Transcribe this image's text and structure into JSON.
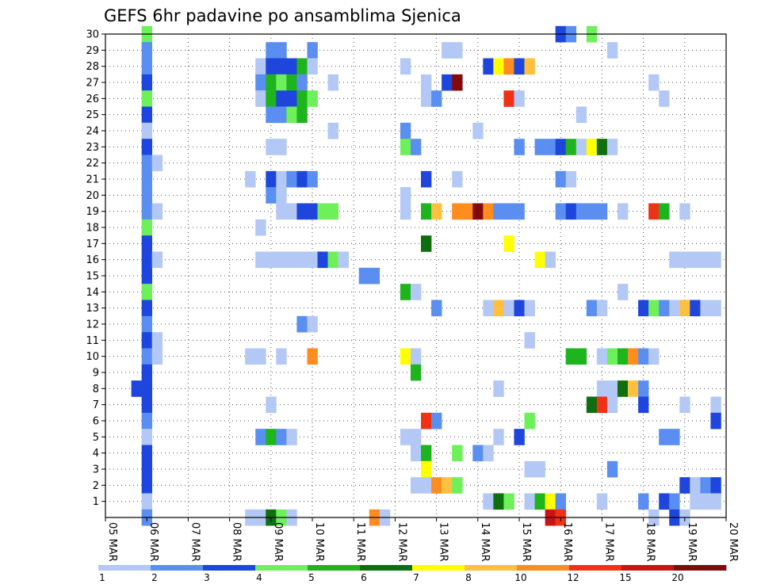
{
  "chart_data": {
    "type": "heatmap",
    "title": "GEFS 6hr padavine po ansamblima Sjenica",
    "xlabel": "",
    "ylabel": "",
    "x_ticks": [
      "05 MAR",
      "06 MAR",
      "07 MAR",
      "08 MAR",
      "09 MAR",
      "10 MAR",
      "11 MAR",
      "12 MAR",
      "13 MAR",
      "14 MAR",
      "15 MAR",
      "16 MAR",
      "17 MAR",
      "18 MAR",
      "19 MAR",
      "20 MAR"
    ],
    "y_ticks": [
      1,
      2,
      3,
      4,
      5,
      6,
      7,
      8,
      9,
      10,
      11,
      12,
      13,
      14,
      15,
      16,
      17,
      18,
      19,
      20,
      21,
      22,
      23,
      24,
      25,
      26,
      27,
      28,
      29,
      30
    ],
    "x_range_days": [
      0,
      15
    ],
    "y_range": [
      0,
      30
    ],
    "grid": "dotted",
    "legend": "bottom colorbar",
    "levels": [
      1,
      2,
      3,
      4,
      5,
      6,
      7,
      8,
      10,
      12,
      15,
      20
    ],
    "colors": [
      "#b4c8f5",
      "#5a8ef0",
      "#1e46dc",
      "#6ef05a",
      "#1eb41e",
      "#0f6e0f",
      "#ffff00",
      "#ffc040",
      "#ff8c1e",
      "#f03214",
      "#c81414",
      "#820a0a"
    ],
    "cells_format": "[day_offset_from_05_MAR, member, color_class]",
    "cells": [
      [
        1,
        30,
        3
      ],
      [
        1,
        29,
        1
      ],
      [
        1,
        28,
        1
      ],
      [
        1,
        27,
        2
      ],
      [
        1,
        26,
        3
      ],
      [
        1,
        25,
        2
      ],
      [
        1,
        24,
        0
      ],
      [
        1,
        23,
        2
      ],
      [
        1,
        22,
        1
      ],
      [
        1,
        21,
        1
      ],
      [
        1,
        20,
        1
      ],
      [
        1,
        19,
        1
      ],
      [
        1,
        18,
        3
      ],
      [
        1,
        17,
        2
      ],
      [
        1,
        16,
        2
      ],
      [
        1,
        15,
        2
      ],
      [
        1,
        14,
        3
      ],
      [
        1,
        13,
        2
      ],
      [
        1,
        12,
        1
      ],
      [
        1,
        11,
        2
      ],
      [
        1,
        10,
        1
      ],
      [
        1,
        9,
        2
      ],
      [
        1,
        8,
        2
      ],
      [
        1,
        7,
        2
      ],
      [
        1,
        6,
        1
      ],
      [
        1,
        5,
        0
      ],
      [
        1,
        4,
        2
      ],
      [
        1,
        3,
        2
      ],
      [
        1,
        2,
        2
      ],
      [
        1,
        1,
        0
      ],
      [
        1,
        0,
        1
      ],
      [
        1.25,
        22,
        0
      ],
      [
        1.25,
        19,
        0
      ],
      [
        1.25,
        16,
        0
      ],
      [
        1.25,
        11,
        0
      ],
      [
        1.25,
        10,
        0
      ],
      [
        0.75,
        8,
        2
      ],
      [
        3.5,
        21,
        0
      ],
      [
        3.5,
        10,
        0
      ],
      [
        3.5,
        0,
        0
      ],
      [
        3.75,
        28,
        0
      ],
      [
        3.75,
        27,
        1
      ],
      [
        3.75,
        26,
        0
      ],
      [
        3.75,
        18,
        0
      ],
      [
        3.75,
        16,
        0
      ],
      [
        3.75,
        10,
        0
      ],
      [
        3.75,
        5,
        1
      ],
      [
        3.75,
        0,
        0
      ],
      [
        4,
        29,
        1
      ],
      [
        4,
        28,
        2
      ],
      [
        4,
        27,
        4
      ],
      [
        4,
        26,
        4
      ],
      [
        4,
        25,
        1
      ],
      [
        4,
        23,
        0
      ],
      [
        4,
        21,
        2
      ],
      [
        4,
        20,
        1
      ],
      [
        4,
        16,
        0
      ],
      [
        4,
        7,
        0
      ],
      [
        4,
        5,
        4
      ],
      [
        4,
        0,
        5
      ],
      [
        4.25,
        29,
        1
      ],
      [
        4.25,
        28,
        2
      ],
      [
        4.25,
        27,
        3
      ],
      [
        4.25,
        26,
        2
      ],
      [
        4.25,
        25,
        1
      ],
      [
        4.25,
        23,
        0
      ],
      [
        4.25,
        21,
        0
      ],
      [
        4.25,
        20,
        0
      ],
      [
        4.25,
        19,
        0
      ],
      [
        4.25,
        16,
        0
      ],
      [
        4.25,
        10,
        0
      ],
      [
        4.25,
        5,
        1
      ],
      [
        4.25,
        0,
        3
      ],
      [
        4.5,
        28,
        2
      ],
      [
        4.5,
        27,
        4
      ],
      [
        4.5,
        26,
        2
      ],
      [
        4.5,
        25,
        3
      ],
      [
        4.5,
        21,
        1
      ],
      [
        4.5,
        19,
        0
      ],
      [
        4.5,
        16,
        0
      ],
      [
        4.5,
        5,
        0
      ],
      [
        4.5,
        0,
        0
      ],
      [
        4.75,
        28,
        4
      ],
      [
        4.75,
        27,
        1
      ],
      [
        4.75,
        26,
        4
      ],
      [
        4.75,
        25,
        4
      ],
      [
        4.75,
        21,
        2
      ],
      [
        4.75,
        19,
        2
      ],
      [
        4.75,
        16,
        0
      ],
      [
        4.75,
        12,
        1
      ],
      [
        5,
        29,
        1
      ],
      [
        5,
        28,
        0
      ],
      [
        5,
        26,
        3
      ],
      [
        5,
        21,
        1
      ],
      [
        5,
        19,
        2
      ],
      [
        5,
        16,
        0
      ],
      [
        5,
        12,
        0
      ],
      [
        5,
        10,
        8
      ],
      [
        5.25,
        19,
        3
      ],
      [
        5.25,
        16,
        2
      ],
      [
        5.5,
        27,
        0
      ],
      [
        5.5,
        24,
        0
      ],
      [
        5.5,
        19,
        3
      ],
      [
        5.5,
        16,
        3
      ],
      [
        5.75,
        16,
        0
      ],
      [
        6.25,
        15,
        1
      ],
      [
        6.5,
        15,
        1
      ],
      [
        6.5,
        0,
        8
      ],
      [
        6.75,
        0,
        0
      ],
      [
        7.25,
        28,
        0
      ],
      [
        7.25,
        24,
        1
      ],
      [
        7.25,
        23,
        3
      ],
      [
        7.25,
        20,
        0
      ],
      [
        7.25,
        19,
        0
      ],
      [
        7.25,
        14,
        4
      ],
      [
        7.25,
        10,
        6
      ],
      [
        7.25,
        5,
        0
      ],
      [
        7.5,
        23,
        1
      ],
      [
        7.5,
        14,
        0
      ],
      [
        7.5,
        10,
        0
      ],
      [
        7.5,
        5,
        0
      ],
      [
        7.5,
        4,
        0
      ],
      [
        7.5,
        2,
        0
      ],
      [
        7.5,
        9,
        4
      ],
      [
        7.75,
        27,
        0
      ],
      [
        7.75,
        26,
        0
      ],
      [
        7.75,
        21,
        2
      ],
      [
        7.75,
        19,
        4
      ],
      [
        7.75,
        17,
        5
      ],
      [
        7.75,
        6,
        9
      ],
      [
        7.75,
        4,
        4
      ],
      [
        7.75,
        3,
        6
      ],
      [
        7.75,
        2,
        0
      ],
      [
        8,
        26,
        1
      ],
      [
        8,
        19,
        7
      ],
      [
        8,
        13,
        1
      ],
      [
        8,
        6,
        1
      ],
      [
        8,
        2,
        8
      ],
      [
        8.25,
        29,
        0
      ],
      [
        8.25,
        27,
        2
      ],
      [
        8.25,
        2,
        7
      ],
      [
        8.5,
        29,
        0
      ],
      [
        8.5,
        27,
        11
      ],
      [
        8.5,
        21,
        0
      ],
      [
        8.5,
        19,
        8
      ],
      [
        8.5,
        4,
        3
      ],
      [
        8.5,
        2,
        3
      ],
      [
        8.75,
        19,
        8
      ],
      [
        9,
        24,
        0
      ],
      [
        9,
        19,
        11
      ],
      [
        9,
        4,
        1
      ],
      [
        9.25,
        28,
        2
      ],
      [
        9.25,
        19,
        8
      ],
      [
        9.25,
        13,
        0
      ],
      [
        9.25,
        4,
        0
      ],
      [
        9.25,
        1,
        0
      ],
      [
        9.5,
        28,
        6
      ],
      [
        9.5,
        19,
        1
      ],
      [
        9.5,
        13,
        7
      ],
      [
        9.5,
        8,
        0
      ],
      [
        9.5,
        5,
        0
      ],
      [
        9.5,
        1,
        5
      ],
      [
        9.75,
        28,
        8
      ],
      [
        9.75,
        26,
        9
      ],
      [
        9.75,
        19,
        1
      ],
      [
        9.75,
        17,
        6
      ],
      [
        9.75,
        13,
        0
      ],
      [
        9.75,
        1,
        3
      ],
      [
        10,
        28,
        2
      ],
      [
        10,
        26,
        0
      ],
      [
        10,
        23,
        1
      ],
      [
        10,
        19,
        1
      ],
      [
        10,
        13,
        2
      ],
      [
        10,
        5,
        2
      ],
      [
        10.25,
        28,
        7
      ],
      [
        10.25,
        13,
        0
      ],
      [
        10.25,
        11,
        0
      ],
      [
        10.25,
        6,
        3
      ],
      [
        10.25,
        3,
        0
      ],
      [
        10.25,
        1,
        0
      ],
      [
        10.5,
        23,
        1
      ],
      [
        10.5,
        16,
        6
      ],
      [
        10.5,
        3,
        0
      ],
      [
        10.5,
        1,
        4
      ],
      [
        10.75,
        23,
        1
      ],
      [
        10.75,
        16,
        0
      ],
      [
        10.75,
        1,
        6
      ],
      [
        10.75,
        0,
        10
      ],
      [
        11,
        30,
        2
      ],
      [
        11,
        23,
        2
      ],
      [
        11,
        21,
        1
      ],
      [
        11,
        19,
        1
      ],
      [
        11,
        1,
        1
      ],
      [
        11,
        0,
        9
      ],
      [
        11.25,
        30,
        1
      ],
      [
        11.25,
        23,
        4
      ],
      [
        11.25,
        21,
        0
      ],
      [
        11.25,
        19,
        2
      ],
      [
        11.25,
        10,
        4
      ],
      [
        11.5,
        25,
        0
      ],
      [
        11.5,
        23,
        0
      ],
      [
        11.5,
        19,
        1
      ],
      [
        11.5,
        10,
        4
      ],
      [
        11.75,
        30,
        3
      ],
      [
        11.75,
        23,
        6
      ],
      [
        11.75,
        19,
        1
      ],
      [
        11.75,
        13,
        1
      ],
      [
        11.75,
        7,
        5
      ],
      [
        12,
        23,
        5
      ],
      [
        12,
        19,
        1
      ],
      [
        12,
        13,
        0
      ],
      [
        12,
        10,
        0
      ],
      [
        12,
        8,
        0
      ],
      [
        12,
        7,
        9
      ],
      [
        12,
        1,
        0
      ],
      [
        12.25,
        29,
        0
      ],
      [
        12.25,
        23,
        0
      ],
      [
        12.25,
        10,
        3
      ],
      [
        12.25,
        8,
        0
      ],
      [
        12.25,
        7,
        0
      ],
      [
        12.25,
        3,
        1
      ],
      [
        12.5,
        19,
        0
      ],
      [
        12.5,
        14,
        0
      ],
      [
        12.5,
        10,
        4
      ],
      [
        12.5,
        8,
        5
      ],
      [
        12.75,
        10,
        8
      ],
      [
        12.75,
        8,
        7
      ],
      [
        13,
        13,
        2
      ],
      [
        13,
        10,
        1
      ],
      [
        13,
        8,
        1
      ],
      [
        13,
        7,
        2
      ],
      [
        13,
        1,
        1
      ],
      [
        13.25,
        27,
        0
      ],
      [
        13.25,
        19,
        9
      ],
      [
        13.25,
        13,
        3
      ],
      [
        13.25,
        10,
        0
      ],
      [
        13.25,
        0,
        0
      ],
      [
        13.5,
        26,
        0
      ],
      [
        13.5,
        19,
        4
      ],
      [
        13.5,
        13,
        1
      ],
      [
        13.5,
        5,
        1
      ],
      [
        13.5,
        1,
        2
      ],
      [
        13.75,
        16,
        0
      ],
      [
        13.75,
        13,
        0
      ],
      [
        13.75,
        5,
        1
      ],
      [
        13.75,
        1,
        1
      ],
      [
        13.75,
        0,
        2
      ],
      [
        14,
        19,
        0
      ],
      [
        14,
        16,
        0
      ],
      [
        14,
        13,
        7
      ],
      [
        14,
        7,
        0
      ],
      [
        14,
        2,
        2
      ],
      [
        14,
        0,
        0
      ],
      [
        14.25,
        16,
        0
      ],
      [
        14.25,
        13,
        2
      ],
      [
        14.25,
        2,
        0
      ],
      [
        14.25,
        1,
        0
      ],
      [
        14.5,
        16,
        0
      ],
      [
        14.5,
        13,
        0
      ],
      [
        14.5,
        2,
        1
      ],
      [
        14.5,
        1,
        0
      ],
      [
        14.75,
        16,
        0
      ],
      [
        14.75,
        13,
        0
      ],
      [
        14.75,
        7,
        0
      ],
      [
        14.75,
        6,
        2
      ],
      [
        14.75,
        2,
        2
      ],
      [
        14.75,
        1,
        0
      ]
    ]
  }
}
